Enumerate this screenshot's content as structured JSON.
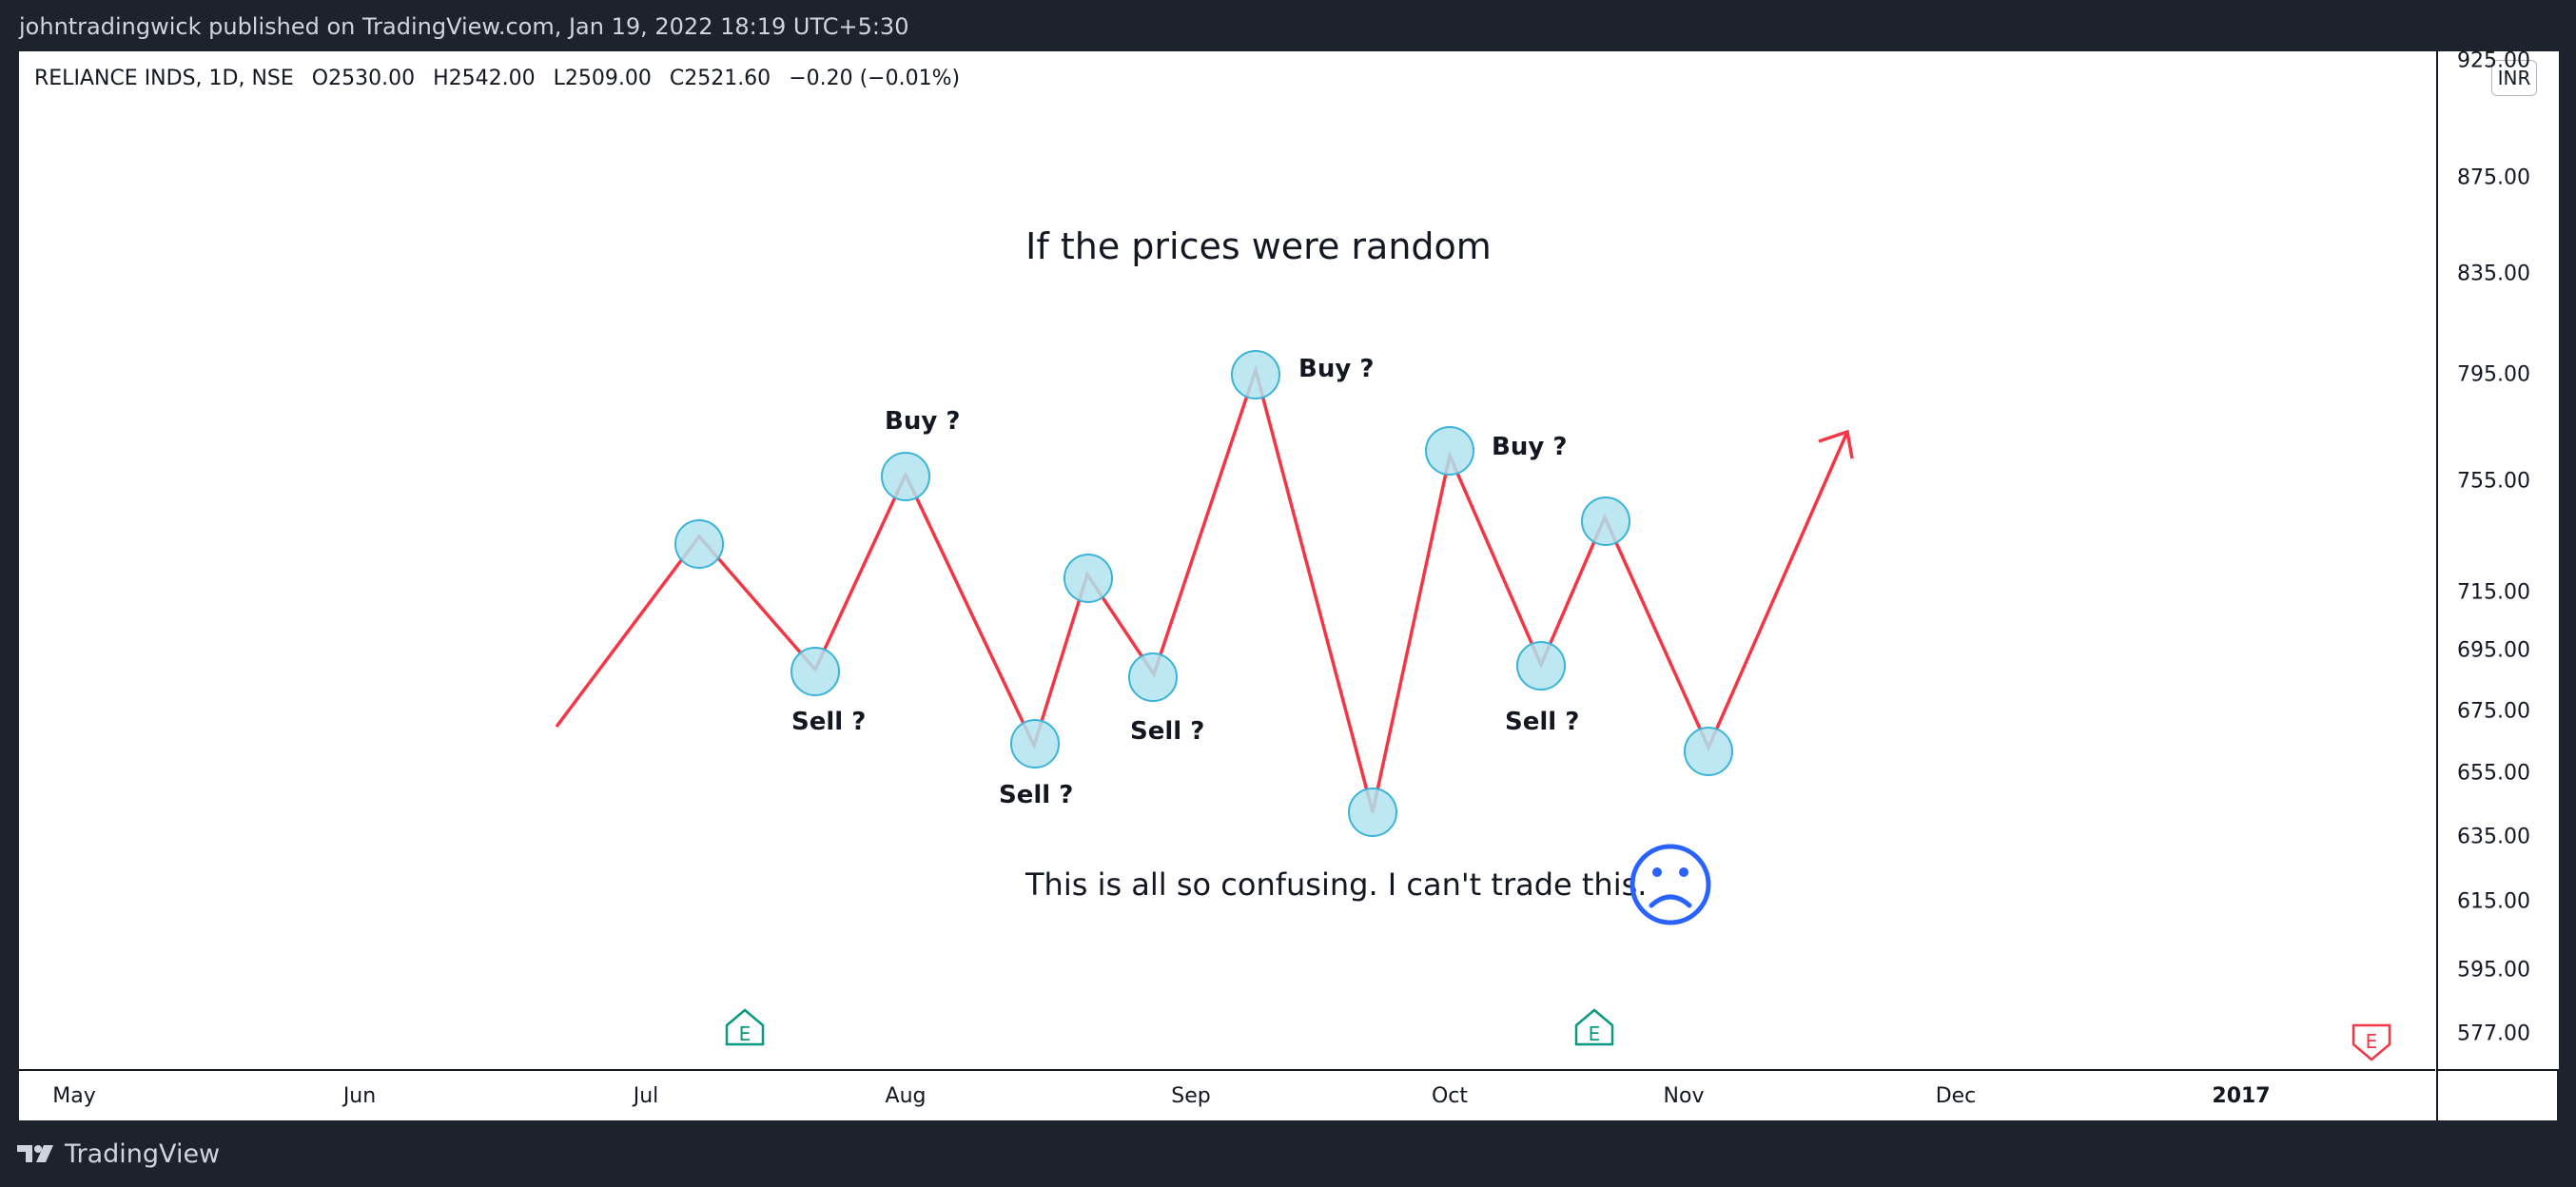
{
  "header": {
    "published_text": "johntradingwick published on TradingView.com, Jan 19, 2022 18:19 UTC+5:30"
  },
  "legend": {
    "symbol": "RELIANCE INDS, 1D, NSE",
    "open": "O2530.00",
    "high": "H2542.00",
    "low": "L2509.00",
    "close": "C2521.60",
    "change": "−0.20 (−0.01%)"
  },
  "price_axis": {
    "currency": "INR",
    "ticks": [
      "925.00",
      "875.00",
      "835.00",
      "795.00",
      "755.00",
      "715.00",
      "695.00",
      "675.00",
      "655.00",
      "635.00",
      "615.00",
      "595.00",
      "577.00"
    ]
  },
  "time_axis": {
    "ticks": [
      {
        "label": "May",
        "bold": false
      },
      {
        "label": "Jun",
        "bold": false
      },
      {
        "label": "Jul",
        "bold": false
      },
      {
        "label": "Aug",
        "bold": false
      },
      {
        "label": "Sep",
        "bold": false
      },
      {
        "label": "Oct",
        "bold": false
      },
      {
        "label": "Nov",
        "bold": false
      },
      {
        "label": "Dec",
        "bold": false
      },
      {
        "label": "2017",
        "bold": true
      }
    ]
  },
  "annotations": {
    "title": "If the prices were random",
    "message": "This is all so confusing. I can't trade this.",
    "buy_label": "Buy ?",
    "sell_label": "Sell ?",
    "labels": [
      {
        "text": "Buy ?"
      },
      {
        "text": "Buy ?"
      },
      {
        "text": "Buy ?"
      },
      {
        "text": "Sell ?"
      },
      {
        "text": "Sell ?"
      },
      {
        "text": "Sell ?"
      },
      {
        "text": "Sell ?"
      }
    ]
  },
  "earnings_markers": [
    {
      "label": "E",
      "color": "#089981"
    },
    {
      "label": "E",
      "color": "#089981"
    },
    {
      "label": "E",
      "color": "#f23645"
    }
  ],
  "colors": {
    "line": "#f23645",
    "circle_fill": "#b2e3ef",
    "circle_stroke": "#3bb4d8",
    "sad_face": "#2962ff",
    "background_dark": "#1e222d"
  },
  "footer": {
    "brand": "TradingView"
  }
}
